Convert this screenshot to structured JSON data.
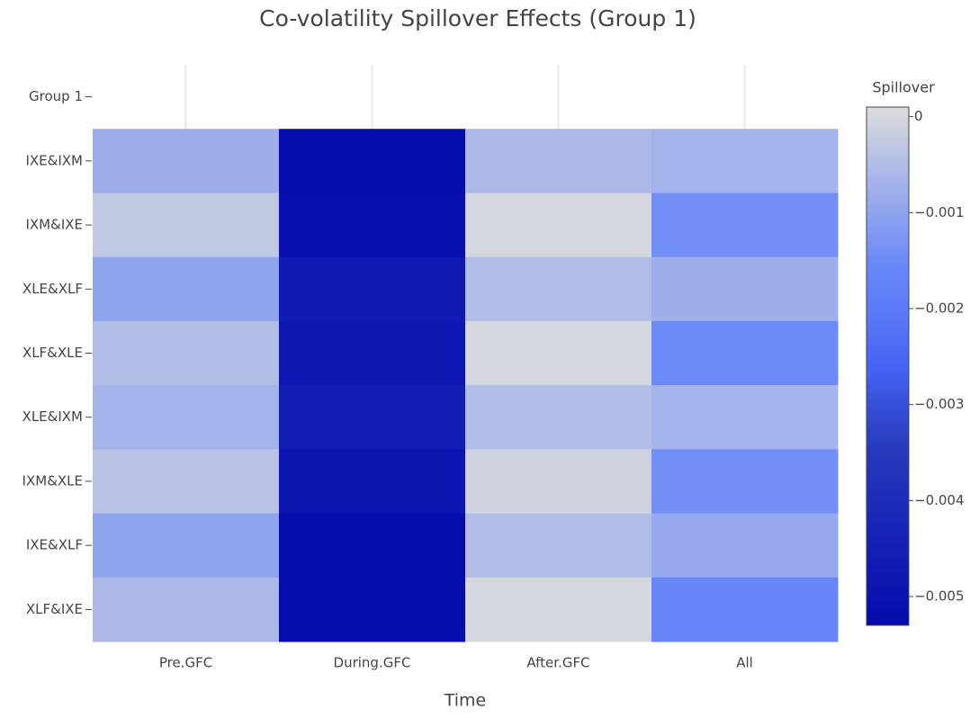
{
  "chart_data": {
    "type": "heatmap",
    "title": "Co-volatility Spillover Effects (Group 1)",
    "x_label": "Time",
    "x": [
      "Pre.GFC",
      "During.GFC",
      "After.GFC",
      "All"
    ],
    "y": [
      "Group 1",
      "IXE&IXM",
      "IXM&IXE",
      "XLE&XLF",
      "XLF&XLE",
      "XLE&IXM",
      "IXM&XLE",
      "IXE&XLF",
      "XLF&IXE"
    ],
    "z": [
      [
        null,
        null,
        null,
        null
      ],
      [
        -0.0008,
        -0.0052,
        -0.0006,
        -0.0007
      ],
      [
        -0.0003,
        -0.0051,
        0,
        -0.0014
      ],
      [
        -0.001,
        -0.0047,
        -0.0005,
        -0.0008
      ],
      [
        -0.0005,
        -0.0048,
        0,
        -0.0015
      ],
      [
        -0.0007,
        -0.0046,
        -0.0005,
        -0.0007
      ],
      [
        -0.0004,
        -0.0049,
        -0.0001,
        -0.0014
      ],
      [
        -0.001,
        -0.0052,
        -0.0005,
        -0.0009
      ],
      [
        -0.0006,
        -0.0052,
        0,
        -0.0016
      ]
    ],
    "colorbar_title": "Spillover",
    "zlim": [
      -0.0053,
      0.0001
    ],
    "zticks": [
      0,
      {
        "value": -0.001,
        "label": "−0.001"
      },
      {
        "value": -0.002,
        "label": "−0.002"
      },
      {
        "value": -0.003,
        "label": "−0.003"
      },
      {
        "value": -0.004,
        "label": "−0.004"
      },
      {
        "value": -0.005,
        "label": "−0.005"
      }
    ],
    "colorscale": [
      [
        0,
        "#050aac"
      ],
      [
        0.35,
        "#283cbe"
      ],
      [
        0.5,
        "#4664f5"
      ],
      [
        0.6,
        "#5a78f5"
      ],
      [
        0.7,
        "#6a89f7"
      ],
      [
        1,
        "#dcdcdc"
      ]
    ],
    "grid": true
  }
}
